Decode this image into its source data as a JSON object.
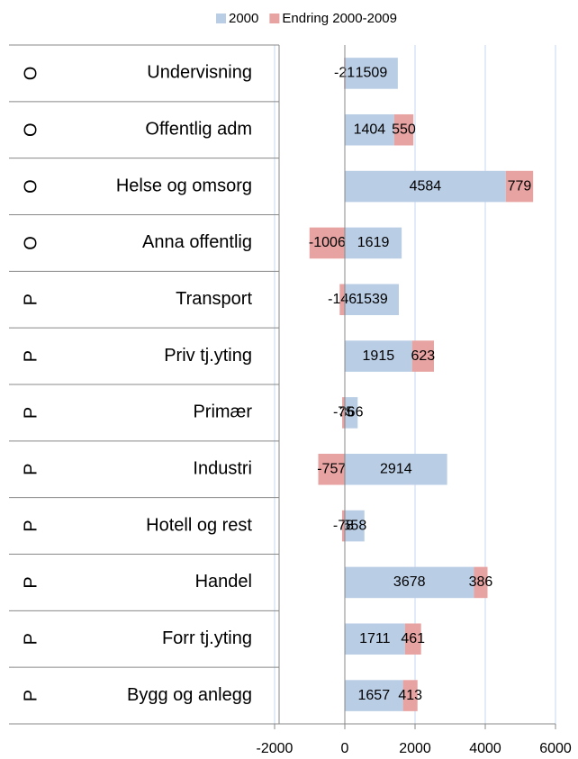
{
  "chart_data": {
    "type": "stacked-barh",
    "groups": [
      "O",
      "O",
      "O",
      "O",
      "P",
      "P",
      "P",
      "P",
      "P",
      "P",
      "P",
      "P"
    ],
    "categories": [
      "Undervisning",
      "Offentlig adm",
      "Helse og omsorg",
      "Anna offentlig",
      "Transport",
      "Priv tj.yting",
      "Primær",
      "Industri",
      "Hotell og rest",
      "Handel",
      "Forr tj.yting",
      "Bygg og anlegg"
    ],
    "series": [
      {
        "name": "2000",
        "color": "#b9cde5",
        "values": [
          1509,
          1404,
          4584,
          1619,
          1539,
          1915,
          366,
          2914,
          558,
          3678,
          1711,
          1657
        ]
      },
      {
        "name": "Endring 2000-2009",
        "color": "#e6a3a2",
        "values": [
          -21,
          550,
          779,
          -1006,
          -146,
          623,
          -75,
          -757,
          -78,
          386,
          461,
          413
        ]
      }
    ],
    "xlim": [
      -2000,
      6000
    ],
    "xticks": [
      -2000,
      0,
      2000,
      4000,
      6000
    ],
    "grid": true,
    "legend": "top"
  }
}
